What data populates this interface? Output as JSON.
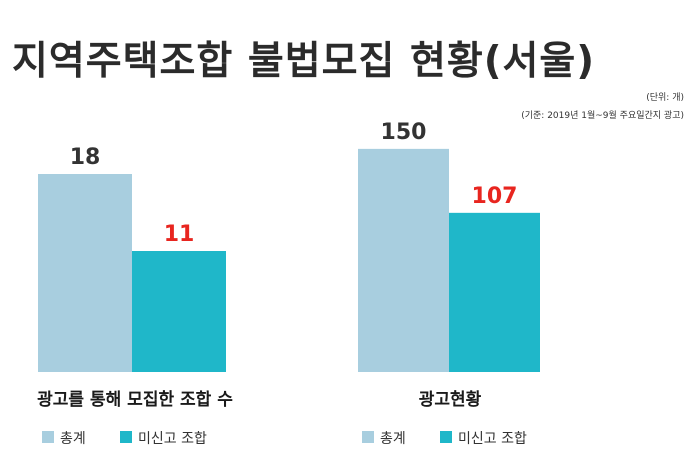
{
  "title": "지역주택조합 불법모집 현황(서울)",
  "unit_note": "(단위: 개)",
  "basis_note": "(기준: 2019년 1월~9월 주요일간지 광고)",
  "colors": {
    "total": "#a8cedf",
    "unreported": "#1fb7c9",
    "highlight_label": "#e8251f",
    "normal_label": "#333333"
  },
  "chart_data": [
    {
      "type": "bar",
      "title": "광고를 통해 모집한 조합 수",
      "categories": [
        "총계",
        "미신고 조합"
      ],
      "values": [
        18,
        11
      ],
      "ylim": [
        0,
        20
      ],
      "legend": [
        "총계",
        "미신고 조합"
      ],
      "legend_position": "bottom",
      "grid": false
    },
    {
      "type": "bar",
      "title": "광고현황",
      "categories": [
        "총계",
        "미신고 조합"
      ],
      "values": [
        150,
        107
      ],
      "ylim": [
        0,
        160
      ],
      "legend": [
        "총계",
        "미신고 조합"
      ],
      "legend_position": "bottom",
      "grid": false
    }
  ]
}
